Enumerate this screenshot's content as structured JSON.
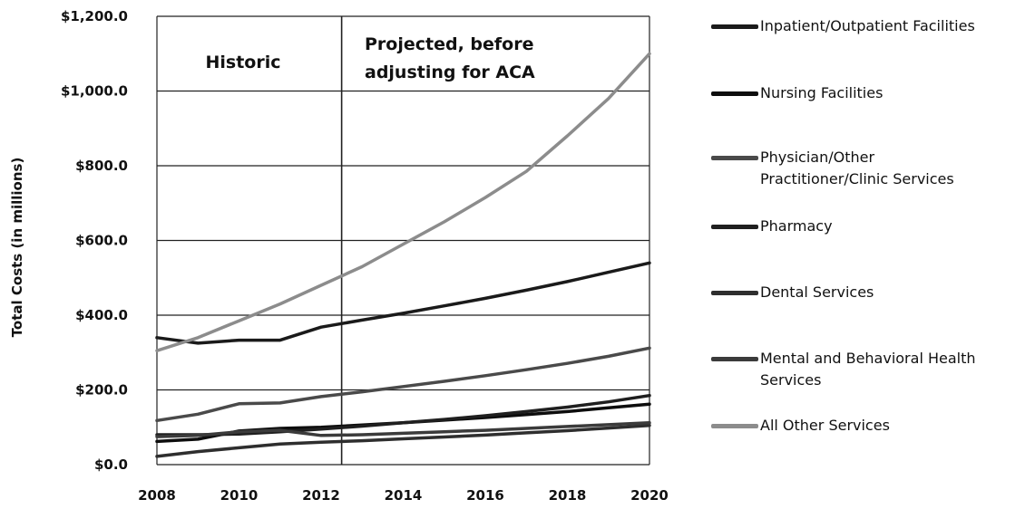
{
  "chart_data": {
    "type": "line",
    "title": "",
    "xlabel": "",
    "ylabel": "Total Costs (in millions)",
    "xlim": [
      2008,
      2020
    ],
    "ylim": [
      0,
      1200
    ],
    "x_ticks": [
      "2008",
      "2010",
      "2012",
      "2014",
      "2016",
      "2018",
      "2020"
    ],
    "y_ticks": [
      "$0.0",
      "$200.0",
      "$400.0",
      "$600.0",
      "$800.0",
      "$1,000.0",
      "$1,200.0"
    ],
    "grid": true,
    "legend_position": "right",
    "divider_x": 2012.5,
    "annotations": [
      {
        "text": [
          "Historic"
        ],
        "region": "historic"
      },
      {
        "text": [
          "Projected, before",
          "adjusting for ACA"
        ],
        "region": "projected"
      }
    ],
    "x": [
      2008,
      2009,
      2010,
      2011,
      2012,
      2013,
      2014,
      2015,
      2016,
      2017,
      2018,
      2019,
      2020
    ],
    "series": [
      {
        "name": "Inpatient/Outpatient Facilities",
        "color": "#1a1a1a",
        "values": [
          340,
          325,
          333,
          333,
          368,
          387,
          405,
          425,
          445,
          467,
          490,
          515,
          540
        ]
      },
      {
        "name": "Nursing Facilities",
        "color": "#0d0d0d",
        "values": [
          62,
          68,
          90,
          97,
          100,
          106,
          112,
          119,
          126,
          134,
          142,
          152,
          162
        ]
      },
      {
        "name": "Physician/Other Practitioner/Clinic Services",
        "color": "#4a4a4a",
        "values": [
          118,
          135,
          163,
          165,
          182,
          195,
          209,
          223,
          238,
          254,
          271,
          290,
          312
        ]
      },
      {
        "name": "Pharmacy",
        "color": "#1f1f1f",
        "values": [
          80,
          80,
          82,
          88,
          95,
          103,
          112,
          121,
          131,
          142,
          154,
          168,
          185
        ]
      },
      {
        "name": "Dental Services",
        "color": "#2e2e2e",
        "values": [
          22,
          35,
          45,
          55,
          60,
          64,
          69,
          74,
          79,
          85,
          91,
          98,
          105
        ]
      },
      {
        "name": "Mental and Behavioral Health Services",
        "color": "#3b3b3b",
        "values": [
          75,
          78,
          88,
          92,
          78,
          80,
          84,
          88,
          92,
          97,
          102,
          107,
          112
        ]
      },
      {
        "name": "All Other Services",
        "color": "#8c8c8c",
        "values": [
          305,
          340,
          385,
          430,
          480,
          530,
          590,
          650,
          715,
          785,
          880,
          980,
          1100
        ]
      }
    ]
  },
  "legend": {
    "items": [
      {
        "lines": [
          "Inpatient/Outpatient Facilities"
        ]
      },
      {
        "lines": [
          "Nursing Facilities"
        ]
      },
      {
        "lines": [
          "Physician/Other",
          "Practitioner/Clinic Services"
        ]
      },
      {
        "lines": [
          "Pharmacy"
        ]
      },
      {
        "lines": [
          "Dental Services"
        ]
      },
      {
        "lines": [
          "Mental and Behavioral Health",
          "Services"
        ]
      },
      {
        "lines": [
          "All Other Services"
        ]
      }
    ]
  }
}
